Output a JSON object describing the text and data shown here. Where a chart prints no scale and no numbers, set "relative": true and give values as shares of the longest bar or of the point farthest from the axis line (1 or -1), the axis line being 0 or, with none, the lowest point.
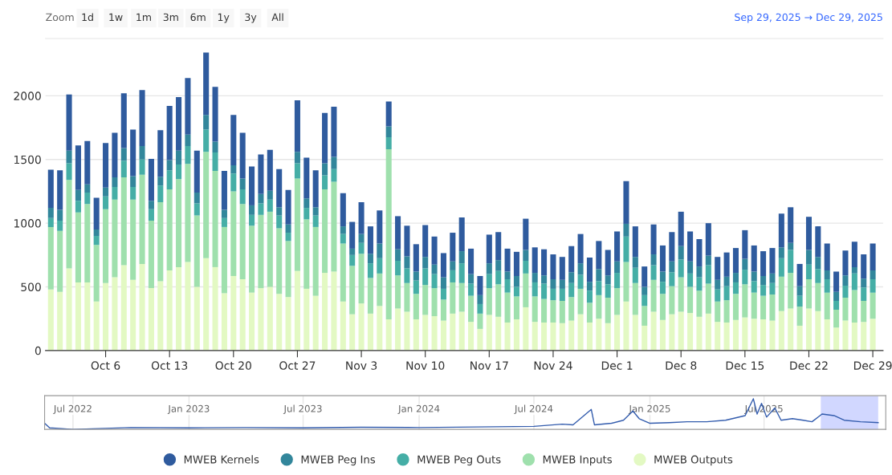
{
  "chart_data": [
    {
      "type": "bar",
      "stacked": true,
      "title": "Sep 29, 2025 → Dec 29, 2025",
      "annotations": [
        "Zoom",
        "1d",
        "1w",
        "1m",
        "3m",
        "6m",
        "1y",
        "3y",
        "All"
      ],
      "x": [
        "2025-09-30",
        "2025-10-01",
        "2025-10-02",
        "2025-10-03",
        "2025-10-04",
        "2025-10-05",
        "2025-10-06",
        "2025-10-07",
        "2025-10-08",
        "2025-10-09",
        "2025-10-10",
        "2025-10-11",
        "2025-10-12",
        "2025-10-13",
        "2025-10-14",
        "2025-10-15",
        "2025-10-16",
        "2025-10-17",
        "2025-10-18",
        "2025-10-19",
        "2025-10-20",
        "2025-10-21",
        "2025-10-22",
        "2025-10-23",
        "2025-10-24",
        "2025-10-25",
        "2025-10-26",
        "2025-10-27",
        "2025-10-28",
        "2025-10-29",
        "2025-10-30",
        "2025-10-31",
        "2025-11-01",
        "2025-11-02",
        "2025-11-03",
        "2025-11-04",
        "2025-11-05",
        "2025-11-06",
        "2025-11-07",
        "2025-11-08",
        "2025-11-09",
        "2025-11-10",
        "2025-11-11",
        "2025-11-12",
        "2025-11-13",
        "2025-11-14",
        "2025-11-15",
        "2025-11-16",
        "2025-11-17",
        "2025-11-18",
        "2025-11-19",
        "2025-11-20",
        "2025-11-21",
        "2025-11-22",
        "2025-11-23",
        "2025-11-24",
        "2025-11-25",
        "2025-11-26",
        "2025-11-27",
        "2025-11-28",
        "2025-11-29",
        "2025-11-30",
        "2025-12-01",
        "2025-12-02",
        "2025-12-03",
        "2025-12-04",
        "2025-12-05",
        "2025-12-06",
        "2025-12-07",
        "2025-12-08",
        "2025-12-09",
        "2025-12-10",
        "2025-12-11",
        "2025-12-12",
        "2025-12-13",
        "2025-12-14",
        "2025-12-15",
        "2025-12-16",
        "2025-12-17",
        "2025-12-18",
        "2025-12-19",
        "2025-12-20",
        "2025-12-21",
        "2025-12-22",
        "2025-12-23",
        "2025-12-24",
        "2025-12-25",
        "2025-12-26",
        "2025-12-27",
        "2025-12-28",
        "2025-12-29"
      ],
      "xlim": [
        "2025-09-29T10:00",
        "2025-12-30T03:00"
      ],
      "xticks": [
        {
          "value": "2025-10-06",
          "label": "Oct 6"
        },
        {
          "value": "2025-10-13",
          "label": "Oct 13"
        },
        {
          "value": "2025-10-20",
          "label": "Oct 20"
        },
        {
          "value": "2025-10-27",
          "label": "Oct 27"
        },
        {
          "value": "2025-11-03",
          "label": "Nov 3"
        },
        {
          "value": "2025-11-10",
          "label": "Nov 10"
        },
        {
          "value": "2025-11-17",
          "label": "Nov 17"
        },
        {
          "value": "2025-11-24",
          "label": "Nov 24"
        },
        {
          "value": "2025-12-01",
          "label": "Dec 1"
        },
        {
          "value": "2025-12-08",
          "label": "Dec 8"
        },
        {
          "value": "2025-12-15",
          "label": "Dec 15"
        },
        {
          "value": "2025-12-22",
          "label": "Dec 22"
        },
        {
          "value": "2025-12-29",
          "label": "Dec 29"
        }
      ],
      "ylim": [
        0,
        2450
      ],
      "yticks": [
        0,
        500,
        1000,
        1500,
        2000
      ],
      "grid": "y",
      "legend": "bottom",
      "marker": "circle",
      "series": [
        {
          "name": "MWEB Outputs",
          "color": "#e3f9c3",
          "values": [
            480,
            460,
            645,
            535,
            535,
            385,
            530,
            575,
            670,
            555,
            680,
            490,
            545,
            630,
            655,
            695,
            500,
            725,
            655,
            450,
            585,
            560,
            455,
            490,
            500,
            445,
            420,
            625,
            485,
            430,
            610,
            620,
            385,
            285,
            370,
            290,
            350,
            245,
            330,
            305,
            245,
            280,
            270,
            235,
            290,
            305,
            225,
            170,
            280,
            265,
            220,
            245,
            340,
            225,
            220,
            220,
            215,
            235,
            285,
            220,
            250,
            215,
            280,
            385,
            280,
            195,
            305,
            240,
            285,
            305,
            295,
            265,
            290,
            225,
            220,
            240,
            260,
            250,
            245,
            235,
            310,
            330,
            195,
            330,
            310,
            245,
            180,
            235,
            220,
            225,
            250
          ]
        },
        {
          "name": "MWEB Inputs",
          "color": "#9fe0ad",
          "values": [
            490,
            480,
            695,
            550,
            615,
            445,
            580,
            610,
            690,
            630,
            700,
            530,
            620,
            635,
            690,
            770,
            560,
            835,
            755,
            520,
            665,
            590,
            525,
            575,
            590,
            515,
            440,
            725,
            545,
            540,
            655,
            705,
            455,
            380,
            390,
            280,
            255,
            1335,
            260,
            225,
            200,
            235,
            220,
            165,
            245,
            225,
            205,
            120,
            210,
            255,
            235,
            180,
            265,
            200,
            185,
            175,
            175,
            185,
            200,
            155,
            185,
            200,
            210,
            310,
            250,
            155,
            250,
            205,
            220,
            270,
            205,
            205,
            235,
            160,
            175,
            205,
            260,
            205,
            185,
            205,
            270,
            280,
            150,
            230,
            220,
            210,
            140,
            180,
            255,
            165,
            205
          ]
        },
        {
          "name": "MWEB Peg Outs",
          "color": "#45aea6",
          "values": [
            70,
            80,
            130,
            90,
            90,
            70,
            100,
            100,
            130,
            100,
            120,
            90,
            130,
            150,
            115,
            140,
            95,
            175,
            145,
            70,
            140,
            115,
            85,
            90,
            95,
            100,
            65,
            120,
            90,
            90,
            110,
            100,
            75,
            85,
            85,
            115,
            120,
            95,
            115,
            115,
            105,
            130,
            110,
            85,
            95,
            155,
            95,
            75,
            110,
            105,
            105,
            75,
            100,
            110,
            120,
            90,
            95,
            110,
            110,
            95,
            110,
            105,
            120,
            200,
            120,
            85,
            115,
            95,
            110,
            140,
            105,
            105,
            145,
            95,
            110,
            90,
            115,
            90,
            85,
            90,
            145,
            180,
            85,
            115,
            110,
            105,
            70,
            95,
            130,
            105,
            105
          ]
        },
        {
          "name": "MWEB Peg Ins",
          "color": "#32869b",
          "values": [
            80,
            85,
            100,
            85,
            65,
            50,
            70,
            75,
            100,
            85,
            105,
            65,
            70,
            80,
            110,
            90,
            85,
            115,
            85,
            65,
            65,
            85,
            75,
            75,
            70,
            65,
            65,
            90,
            75,
            65,
            95,
            95,
            60,
            50,
            70,
            75,
            115,
            85,
            90,
            95,
            70,
            90,
            75,
            90,
            70,
            95,
            75,
            70,
            85,
            85,
            60,
            85,
            85,
            75,
            65,
            75,
            70,
            85,
            90,
            70,
            95,
            70,
            90,
            100,
            85,
            65,
            85,
            80,
            85,
            105,
            95,
            85,
            75,
            75,
            75,
            75,
            85,
            75,
            70,
            75,
            85,
            55,
            75,
            115,
            95,
            70,
            70,
            80,
            50,
            70,
            70
          ]
        },
        {
          "name": "MWEB Kernels",
          "color": "#2f5b9e",
          "values": [
            300,
            310,
            440,
            350,
            340,
            250,
            350,
            350,
            430,
            365,
            440,
            330,
            365,
            425,
            420,
            445,
            330,
            490,
            430,
            305,
            395,
            360,
            305,
            310,
            320,
            300,
            270,
            405,
            320,
            290,
            395,
            395,
            260,
            210,
            250,
            215,
            260,
            195,
            260,
            240,
            215,
            250,
            220,
            190,
            225,
            265,
            200,
            150,
            225,
            220,
            180,
            190,
            245,
            200,
            205,
            195,
            180,
            205,
            230,
            190,
            220,
            200,
            235,
            335,
            240,
            160,
            235,
            205,
            230,
            270,
            235,
            215,
            255,
            180,
            190,
            195,
            225,
            205,
            195,
            200,
            265,
            280,
            175,
            260,
            240,
            210,
            160,
            195,
            200,
            190,
            210
          ]
        }
      ]
    },
    {
      "type": "line",
      "relative": true,
      "grid": "x",
      "x": [
        "2022-05-17",
        "2022-05-25",
        "2022-07-01",
        "2022-10-01",
        "2023-01-01",
        "2023-04-01",
        "2023-07-01",
        "2023-10-01",
        "2024-01-01",
        "2024-04-01",
        "2024-07-01",
        "2024-08-15",
        "2024-09-01",
        "2024-09-30",
        "2024-10-05",
        "2024-11-01",
        "2024-11-20",
        "2024-12-05",
        "2024-12-15",
        "2025-01-01",
        "2025-02-01",
        "2025-03-01",
        "2025-04-01",
        "2025-05-01",
        "2025-06-01",
        "2025-06-14",
        "2025-06-20",
        "2025-06-27",
        "2025-07-05",
        "2025-07-18",
        "2025-07-28",
        "2025-08-15",
        "2025-09-01",
        "2025-09-15",
        "2025-10-01",
        "2025-10-20",
        "2025-11-05",
        "2025-12-01",
        "2025-12-29"
      ],
      "xlim": [
        "2022-05-17",
        "2026-01-10"
      ],
      "xticks": [
        {
          "value": "2022-07-01",
          "label": "Jul 2022"
        },
        {
          "value": "2023-01-01",
          "label": "Jan 2023"
        },
        {
          "value": "2023-07-01",
          "label": "Jul 2023"
        },
        {
          "value": "2024-01-01",
          "label": "Jan 2024"
        },
        {
          "value": "2024-07-01",
          "label": "Jul 2024"
        },
        {
          "value": "2025-01-01",
          "label": "Jan 2025"
        },
        {
          "value": "2025-07-01",
          "label": "Jul 2025"
        }
      ],
      "bands": [
        {
          "axis": "x",
          "from": "2025-09-29",
          "to": "2025-12-29",
          "color": "#ccd3ff"
        }
      ],
      "series": [
        {
          "color": "#335cad",
          "values": [
            0.2,
            0.05,
            0.0,
            0.06,
            0.05,
            0.06,
            0.05,
            0.07,
            0.06,
            0.08,
            0.1,
            0.17,
            0.15,
            0.65,
            0.15,
            0.2,
            0.3,
            0.6,
            0.35,
            0.2,
            0.22,
            0.25,
            0.25,
            0.3,
            0.45,
            1.0,
            0.5,
            0.85,
            0.4,
            0.7,
            0.3,
            0.35,
            0.3,
            0.25,
            0.5,
            0.45,
            0.3,
            0.25,
            0.22
          ]
        }
      ]
    }
  ]
}
